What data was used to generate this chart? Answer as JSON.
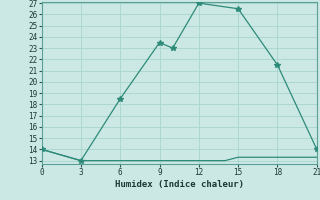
{
  "xlabel": "Humidex (Indice chaleur)",
  "x_line1": [
    0,
    3,
    6,
    9,
    10,
    12,
    15,
    18,
    21
  ],
  "y_line1": [
    14,
    13,
    18.5,
    23.5,
    23,
    27,
    26.5,
    21.5,
    14
  ],
  "x_line2": [
    0,
    3,
    6,
    9,
    10,
    11,
    12,
    13,
    14,
    15,
    16,
    17,
    18,
    19,
    20,
    21
  ],
  "y_line2": [
    14,
    13,
    13,
    13,
    13,
    13,
    13,
    13,
    13,
    13.3,
    13.3,
    13.3,
    13.3,
    13.3,
    13.3,
    13.3
  ],
  "line_color": "#2e8b7a",
  "bg_color": "#cce8e4",
  "grid_color": "#a8d4ce",
  "ylim_min": 13,
  "ylim_max": 27,
  "xlim_min": 0,
  "xlim_max": 21,
  "yticks": [
    13,
    14,
    15,
    16,
    17,
    18,
    19,
    20,
    21,
    22,
    23,
    24,
    25,
    26,
    27
  ],
  "xticks": [
    0,
    3,
    6,
    9,
    12,
    15,
    18,
    21
  ],
  "marker": "*",
  "marker_size": 4,
  "tick_fontsize": 5.5,
  "xlabel_fontsize": 6.5
}
